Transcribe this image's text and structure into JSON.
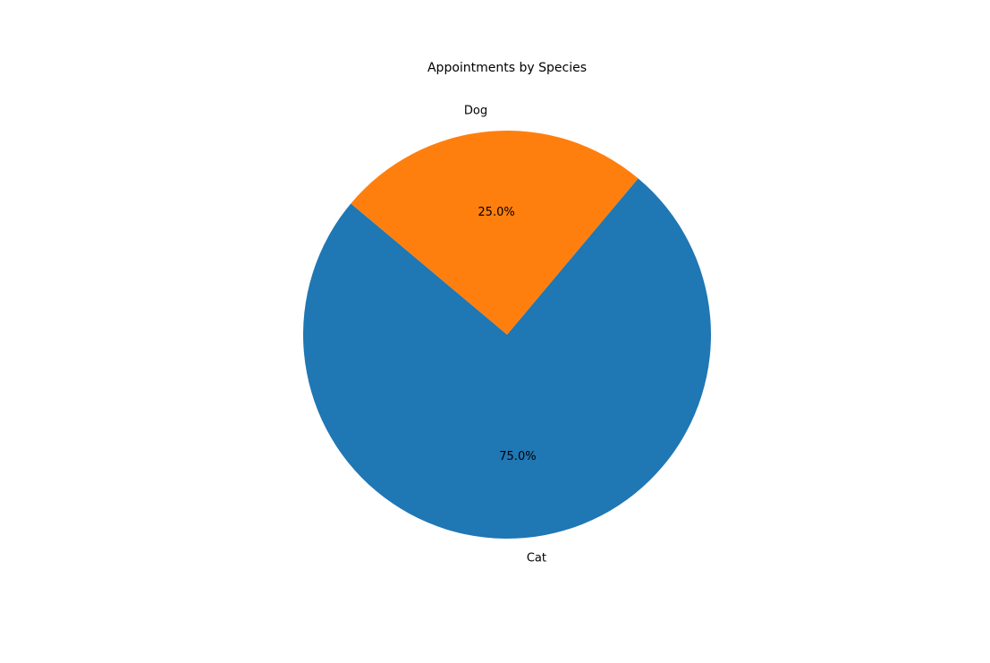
{
  "chart_data": {
    "type": "pie",
    "title": "Appointments by Species",
    "categories": [
      "Cat",
      "Dog"
    ],
    "values": [
      75.0,
      25.0
    ],
    "percent_labels": [
      "75.0%",
      "25.0%"
    ],
    "colors": [
      "#1f77b4",
      "#ff7f0e"
    ],
    "legend": "none"
  }
}
